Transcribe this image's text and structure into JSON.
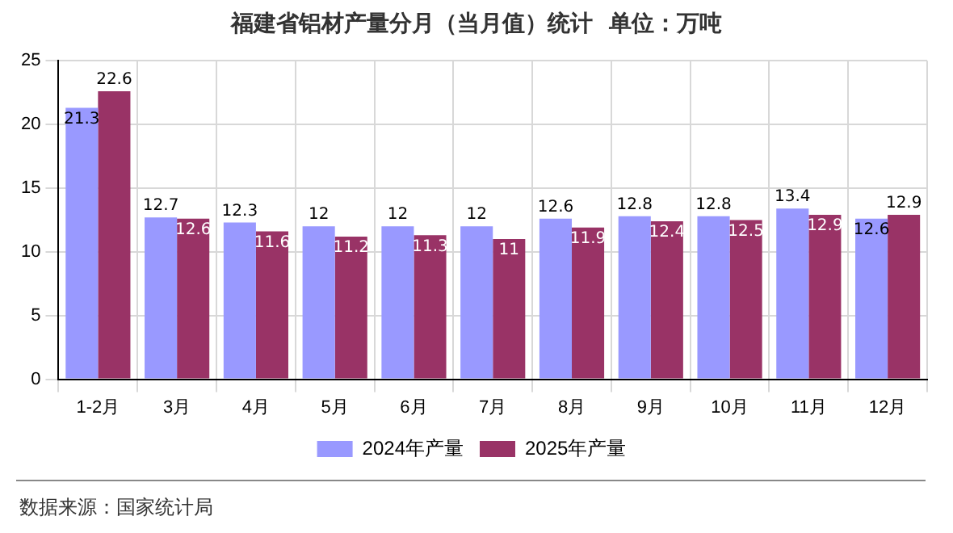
{
  "chart_data": {
    "type": "bar",
    "title": "福建省铝材产量分月（当月值）统计  单位：万吨",
    "categories": [
      "1-2月",
      "3月",
      "4月",
      "5月",
      "6月",
      "7月",
      "8月",
      "9月",
      "10月",
      "11月",
      "12月"
    ],
    "series": [
      {
        "name": "2024年产量",
        "color": "#9999ff",
        "values": [
          21.3,
          12.7,
          12.3,
          12,
          12,
          12,
          12.6,
          12.8,
          12.8,
          13.4,
          12.6
        ]
      },
      {
        "name": "2025年产量",
        "color": "#993366",
        "values": [
          22.6,
          12.6,
          11.6,
          11.2,
          11.3,
          11,
          11.9,
          12.4,
          12.5,
          12.9,
          12.9
        ]
      }
    ],
    "ylim": [
      0,
      25
    ],
    "yticks": [
      0,
      5,
      10,
      15,
      20,
      25
    ],
    "grid": true,
    "legend": "bottom",
    "data_labels": true,
    "annotations": [
      "数据来源：国家统计局"
    ]
  }
}
